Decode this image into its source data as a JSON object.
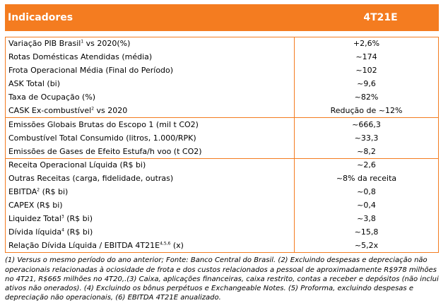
{
  "header": {
    "col_label": "Indicadores",
    "col_value": "4T21E"
  },
  "group1": [
    {
      "label": "Variação PIB Brasil",
      "sup": "1",
      "label_after": " vs 2020(%)",
      "value": "+2,6%"
    },
    {
      "label": "Rotas Domésticas Atendidas (média)",
      "sup": "",
      "label_after": "",
      "value": "~174"
    },
    {
      "label": "Frota Operacional Média (Final do Período)",
      "sup": "",
      "label_after": "",
      "value": "~102"
    },
    {
      "label": "ASK Total (bi)",
      "sup": "",
      "label_after": "",
      "value": "~9,6"
    },
    {
      "label": "Taxa de Ocupação (%)",
      "sup": "",
      "label_after": "",
      "value": "~82%"
    },
    {
      "label": "CASK Ex-combustível",
      "sup": "2",
      "label_after": " vs 2020",
      "value": "Redução de ~12%"
    }
  ],
  "group2": [
    {
      "label": "Emissões Globais Brutas do Escopo 1 (mil t CO2)",
      "sup": "",
      "label_after": "",
      "value": "~666,3"
    },
    {
      "label": "Combustível Total Consumido (litros, 1.000/RPK)",
      "sup": "",
      "label_after": "",
      "value": "~33,3"
    },
    {
      "label": "Emissões de Gases de Efeito Estufa/h voo (t CO2)",
      "sup": "",
      "label_after": "",
      "value": "~8,2"
    }
  ],
  "group3": [
    {
      "label": "Receita Operacional Líquida (R$ bi)",
      "sup": "",
      "label_after": "",
      "value": "~2,6"
    },
    {
      "label": "Outras Receitas (carga, fidelidade, outras)",
      "sup": "",
      "label_after": "",
      "value": "~8% da receita"
    },
    {
      "label": "EBITDA",
      "sup": "2",
      "label_after": " (R$ bi)",
      "value": "~0,8"
    },
    {
      "label": "CAPEX (R$ bi)",
      "sup": "",
      "label_after": "",
      "value": "~0,4"
    },
    {
      "label": "Liquidez Total",
      "sup": "3",
      "label_after": " (R$ bi)",
      "value": "~3,8"
    },
    {
      "label": "Dívida líquida",
      "sup": "4",
      "label_after": " (R$ bi)",
      "value": "~15,8"
    },
    {
      "label": "Relação Dívida Líquida / EBITDA 4T21E",
      "sup": "4,5,6",
      "label_after": " (x)",
      "value": "~5,2x"
    }
  ],
  "footnote": "(1) Versus o mesmo período do ano anterior; Fonte: Banco Central do Brasil. (2) Excluindo despesas e depreciação não operacionais relacionadas à ociosidade de frota e dos custos relacionados a pessoal de aproximadamente R$978 milhões no 4T21, R$665 milhões no 4T20,.(3) Caixa, aplicações financeiras, caixa restrito, contas a receber e depósitos (não inclui ativos não onerados). (4) Excluindo os bônus perpétuos e Exchangeable Notes. (5) Proforma, excluindo despesas e depreciação não operacionais, (6) EBITDA 4T21E anualizado.",
  "colors": {
    "accent": "#f47c20",
    "header_text": "#ffffff"
  }
}
